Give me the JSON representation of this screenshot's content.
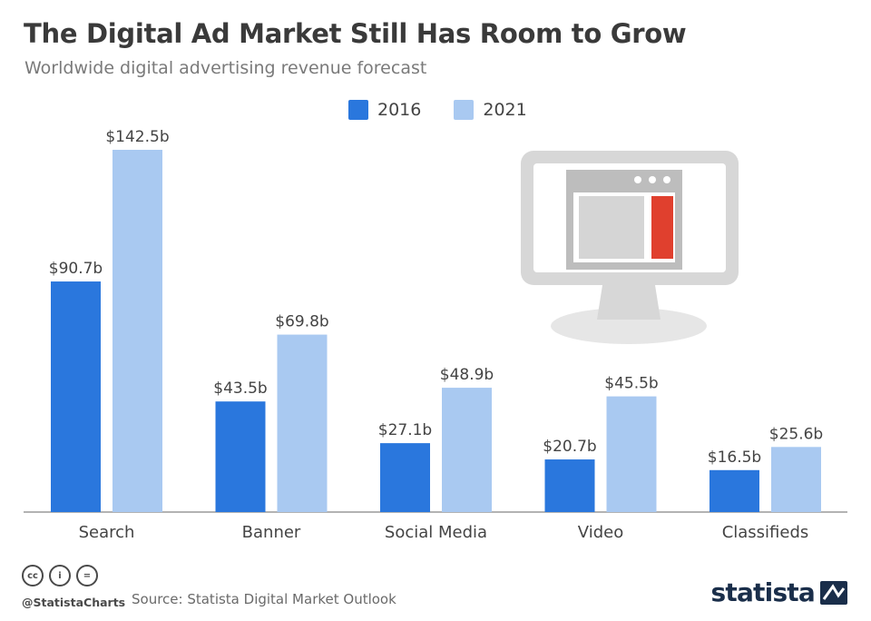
{
  "header": {
    "title": "The Digital Ad Market Still Has Room to Grow",
    "subtitle": "Worldwide digital advertising revenue forecast"
  },
  "legend": [
    {
      "label": "2016",
      "color": "#2a77dd"
    },
    {
      "label": "2021",
      "color": "#a9c9f1"
    }
  ],
  "chart_data": {
    "type": "bar",
    "categories": [
      "Search",
      "Banner",
      "Social Media",
      "Video",
      "Classifieds"
    ],
    "series": [
      {
        "name": "2016",
        "color": "#2a77dd",
        "values": [
          90.7,
          43.5,
          27.1,
          20.7,
          16.5
        ],
        "labels": [
          "$90.7b",
          "$43.5b",
          "$27.1b",
          "$20.7b",
          "$16.5b"
        ]
      },
      {
        "name": "2021",
        "color": "#a9c9f1",
        "values": [
          142.5,
          69.8,
          48.9,
          45.5,
          25.6
        ],
        "labels": [
          "$142.5b",
          "$69.8b",
          "$48.9b",
          "$45.5b",
          "$25.6b"
        ]
      }
    ],
    "unit": "$b",
    "ylim": [
      0,
      142.5
    ],
    "grid": false,
    "legend_position": "top-center"
  },
  "illustration": {
    "icon": "monitor-browser-icon",
    "accent_color": "#e0402e"
  },
  "footer": {
    "license_icons": [
      "cc-icon",
      "by-icon",
      "nd-icon"
    ],
    "license_glyphs": [
      "cc",
      "i",
      "="
    ],
    "handle": "@StatistaCharts",
    "source": "Source: Statista Digital Market Outlook",
    "brand": "statista"
  }
}
